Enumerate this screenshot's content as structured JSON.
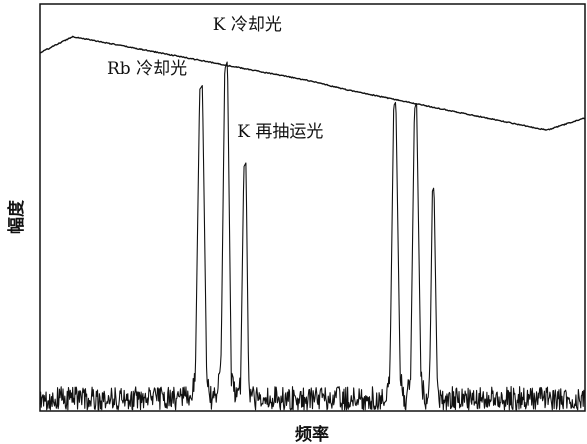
{
  "chart_data": {
    "type": "line",
    "title": "",
    "xlabel": "频率",
    "ylabel": "幅度",
    "xlim": [
      0,
      100
    ],
    "ylim": [
      0,
      100
    ],
    "x_ticks": false,
    "y_ticks": false,
    "grid": false,
    "line_color": "#111111",
    "series": [
      {
        "points": [
          [
            0,
            88
          ],
          [
            6,
            92
          ],
          [
            50,
            81
          ],
          [
            56,
            79
          ],
          [
            93,
            69
          ],
          [
            100,
            72
          ]
        ]
      },
      {
        "points": [
          [
            0,
            3
          ],
          [
            27.5,
            3
          ],
          [
            28.5,
            8
          ],
          [
            29.3,
            79
          ],
          [
            29.8,
            80
          ],
          [
            30.6,
            8
          ],
          [
            31.4,
            3
          ],
          [
            32.3,
            3
          ],
          [
            33.2,
            9
          ],
          [
            33.9,
            84
          ],
          [
            34.4,
            86
          ],
          [
            35.1,
            9
          ],
          [
            35.9,
            3
          ],
          [
            36.2,
            3
          ],
          [
            36.8,
            6
          ],
          [
            37.4,
            60
          ],
          [
            37.8,
            61
          ],
          [
            38.3,
            6
          ],
          [
            38.9,
            3
          ],
          [
            63.3,
            3
          ],
          [
            64.2,
            8
          ],
          [
            64.9,
            75
          ],
          [
            65.3,
            76
          ],
          [
            66.1,
            8
          ],
          [
            66.8,
            3
          ],
          [
            67.2,
            3
          ],
          [
            68,
            8
          ],
          [
            68.7,
            74
          ],
          [
            69.1,
            76
          ],
          [
            69.9,
            8
          ],
          [
            70.6,
            3
          ],
          [
            70.9,
            3
          ],
          [
            71.5,
            6
          ],
          [
            72,
            54
          ],
          [
            72.3,
            55
          ],
          [
            72.9,
            6
          ],
          [
            73.5,
            3
          ],
          [
            100,
            3
          ]
        ],
        "noise": 3
      }
    ],
    "annotations": [
      {
        "text": "K 冷却光",
        "x": 31.7,
        "y": 93.6
      },
      {
        "text": "Rb 冷却光",
        "x": 12.3,
        "y": 82.8
      },
      {
        "text": "K 再抽运光",
        "x": 36.2,
        "y": 67.3
      }
    ]
  }
}
